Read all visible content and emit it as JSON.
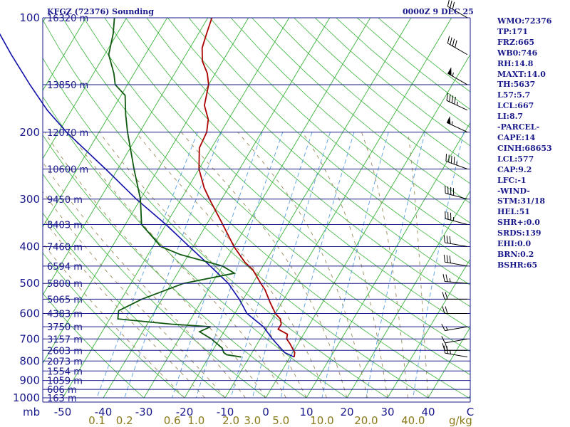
{
  "header": {
    "station": "KFGZ (72376) Sounding",
    "time": "0000Z  9 DEC 25"
  },
  "chart_data": {
    "type": "skew-t",
    "pressure_unit": "mb",
    "mixing_ratio_unit": "g/kg",
    "pressure_ticks": [
      100,
      200,
      300,
      400,
      500,
      600,
      700,
      800,
      900,
      1000
    ],
    "temp_ticks": [
      -50,
      -40,
      -30,
      -20,
      -10,
      0,
      10,
      20,
      30,
      40
    ],
    "temp_axis_end_label": "C",
    "mixing_ratio_ticks": [
      "0.1",
      "0.2",
      "0.6",
      "1.0",
      "2.0",
      "3.0",
      "5.0",
      "10.0",
      "20.0",
      "40.0"
    ],
    "height_labels": [
      {
        "p": 100,
        "label": "16320 m"
      },
      {
        "p": 150,
        "label": "13850 m"
      },
      {
        "p": 200,
        "label": "12070 m"
      },
      {
        "p": 250,
        "label": "10600 m"
      },
      {
        "p": 300,
        "label": "9450 m"
      },
      {
        "p": 350,
        "label": "8403 m"
      },
      {
        "p": 400,
        "label": "7460 m"
      },
      {
        "p": 450,
        "label": "6594 m"
      },
      {
        "p": 500,
        "label": "5800 m"
      },
      {
        "p": 550,
        "label": "5065 m"
      },
      {
        "p": 600,
        "label": "4383 m"
      },
      {
        "p": 650,
        "label": "3750 m"
      },
      {
        "p": 700,
        "label": "3157 m"
      },
      {
        "p": 750,
        "label": "2603 m"
      },
      {
        "p": 800,
        "label": "2073 m"
      },
      {
        "p": 850,
        "label": "1554 m"
      },
      {
        "p": 900,
        "label": "1059 m"
      },
      {
        "p": 950,
        "label": "606 m"
      },
      {
        "p": 1000,
        "label": "163 m"
      }
    ],
    "temperature": [
      {
        "p": 781,
        "t": 1
      },
      {
        "p": 760,
        "t": 0.5
      },
      {
        "p": 720,
        "t": -2
      },
      {
        "p": 700,
        "t": -3.5
      },
      {
        "p": 680,
        "t": -4
      },
      {
        "p": 660,
        "t": -7
      },
      {
        "p": 640,
        "t": -7
      },
      {
        "p": 620,
        "t": -8
      },
      {
        "p": 600,
        "t": -10
      },
      {
        "p": 560,
        "t": -13
      },
      {
        "p": 520,
        "t": -16
      },
      {
        "p": 500,
        "t": -18
      },
      {
        "p": 460,
        "t": -22
      },
      {
        "p": 440,
        "t": -25
      },
      {
        "p": 400,
        "t": -30
      },
      {
        "p": 350,
        "t": -36
      },
      {
        "p": 300,
        "t": -43
      },
      {
        "p": 280,
        "t": -46
      },
      {
        "p": 250,
        "t": -50
      },
      {
        "p": 220,
        "t": -53
      },
      {
        "p": 200,
        "t": -53.5
      },
      {
        "p": 185,
        "t": -55
      },
      {
        "p": 170,
        "t": -58
      },
      {
        "p": 150,
        "t": -60
      },
      {
        "p": 140,
        "t": -62
      },
      {
        "p": 130,
        "t": -65
      },
      {
        "p": 120,
        "t": -67
      },
      {
        "p": 110,
        "t": -68
      },
      {
        "p": 100,
        "t": -69
      }
    ],
    "dewpoint": [
      {
        "p": 781,
        "t": -12
      },
      {
        "p": 770,
        "t": -16
      },
      {
        "p": 760,
        "t": -17
      },
      {
        "p": 740,
        "t": -18
      },
      {
        "p": 700,
        "t": -22
      },
      {
        "p": 670,
        "t": -26
      },
      {
        "p": 650,
        "t": -24
      },
      {
        "p": 640,
        "t": -34
      },
      {
        "p": 620,
        "t": -48
      },
      {
        "p": 590,
        "t": -49
      },
      {
        "p": 550,
        "t": -45
      },
      {
        "p": 500,
        "t": -37
      },
      {
        "p": 470,
        "t": -26
      },
      {
        "p": 450,
        "t": -30
      },
      {
        "p": 420,
        "t": -42
      },
      {
        "p": 400,
        "t": -48
      },
      {
        "p": 350,
        "t": -56
      },
      {
        "p": 300,
        "t": -60
      },
      {
        "p": 250,
        "t": -66
      },
      {
        "p": 220,
        "t": -70
      },
      {
        "p": 200,
        "t": -73
      },
      {
        "p": 180,
        "t": -76
      },
      {
        "p": 160,
        "t": -79
      },
      {
        "p": 150,
        "t": -83
      },
      {
        "p": 140,
        "t": -85
      },
      {
        "p": 125,
        "t": -89
      },
      {
        "p": 110,
        "t": -91
      },
      {
        "p": 100,
        "t": -93
      }
    ],
    "parcel": [
      {
        "p": 781,
        "t": 1
      },
      {
        "p": 760,
        "t": -2
      },
      {
        "p": 700,
        "t": -7
      },
      {
        "p": 650,
        "t": -11
      },
      {
        "p": 600,
        "t": -17
      },
      {
        "p": 550,
        "t": -21
      },
      {
        "p": 500,
        "t": -26
      },
      {
        "p": 450,
        "t": -33
      },
      {
        "p": 400,
        "t": -41
      },
      {
        "p": 350,
        "t": -50
      },
      {
        "p": 300,
        "t": -61
      },
      {
        "p": 250,
        "t": -73
      },
      {
        "p": 200,
        "t": -88
      },
      {
        "p": 175,
        "t": -96
      },
      {
        "p": 150,
        "t": -104
      },
      {
        "p": 125,
        "t": -113
      },
      {
        "p": 110,
        "t": -119
      },
      {
        "p": 104,
        "t": -122
      }
    ],
    "wind_barbs": [
      {
        "p": 781,
        "dir": 280,
        "spd": 25
      },
      {
        "p": 750,
        "dir": 270,
        "spd": 20
      },
      {
        "p": 700,
        "dir": 260,
        "spd": 10
      },
      {
        "p": 650,
        "dir": 260,
        "spd": 15
      },
      {
        "p": 600,
        "dir": 270,
        "spd": 20
      },
      {
        "p": 550,
        "dir": 270,
        "spd": 20
      },
      {
        "p": 500,
        "dir": 275,
        "spd": 25
      },
      {
        "p": 450,
        "dir": 280,
        "spd": 30
      },
      {
        "p": 400,
        "dir": 280,
        "spd": 30
      },
      {
        "p": 350,
        "dir": 285,
        "spd": 35
      },
      {
        "p": 300,
        "dir": 285,
        "spd": 40
      },
      {
        "p": 250,
        "dir": 290,
        "spd": 45
      },
      {
        "p": 200,
        "dir": 295,
        "spd": 55
      },
      {
        "p": 175,
        "dir": 295,
        "spd": 45
      },
      {
        "p": 150,
        "dir": 300,
        "spd": 55
      },
      {
        "p": 125,
        "dir": 300,
        "spd": 40
      },
      {
        "p": 100,
        "dir": 300,
        "spd": 30
      }
    ]
  },
  "indices": [
    "WMO:72376",
    "TP:171",
    "FRZ:665",
    "WB0:746",
    "RH:14.8",
    "MAXT:14.0",
    "TH:5637",
    "L57:5.7",
    "LCL:667",
    "LI:8.7",
    "-PARCEL-",
    "CAPE:14",
    "CINH:68653",
    "LCL:577",
    "CAP:9.2",
    "LFC:-1",
    "-WIND-",
    "STM:31/18",
    "HEL:51",
    "SHR+:0.0",
    "SRDS:139",
    "EHI:0.0",
    "BRN:0.2",
    "BSHR:65"
  ],
  "colors": {
    "axis": "#1a1a8c",
    "isotherm": "#3cb43c",
    "dry_adiabat": "#3cb43c",
    "moist_adiabat": "#9a8a5a",
    "mixing_ratio": "#5aa0e0",
    "temperature": "#aa0000",
    "dewpoint": "#105a10",
    "parcel": "#1010a8",
    "mixing_ratio_label": "#8a7a1a",
    "wind": "#000000"
  }
}
